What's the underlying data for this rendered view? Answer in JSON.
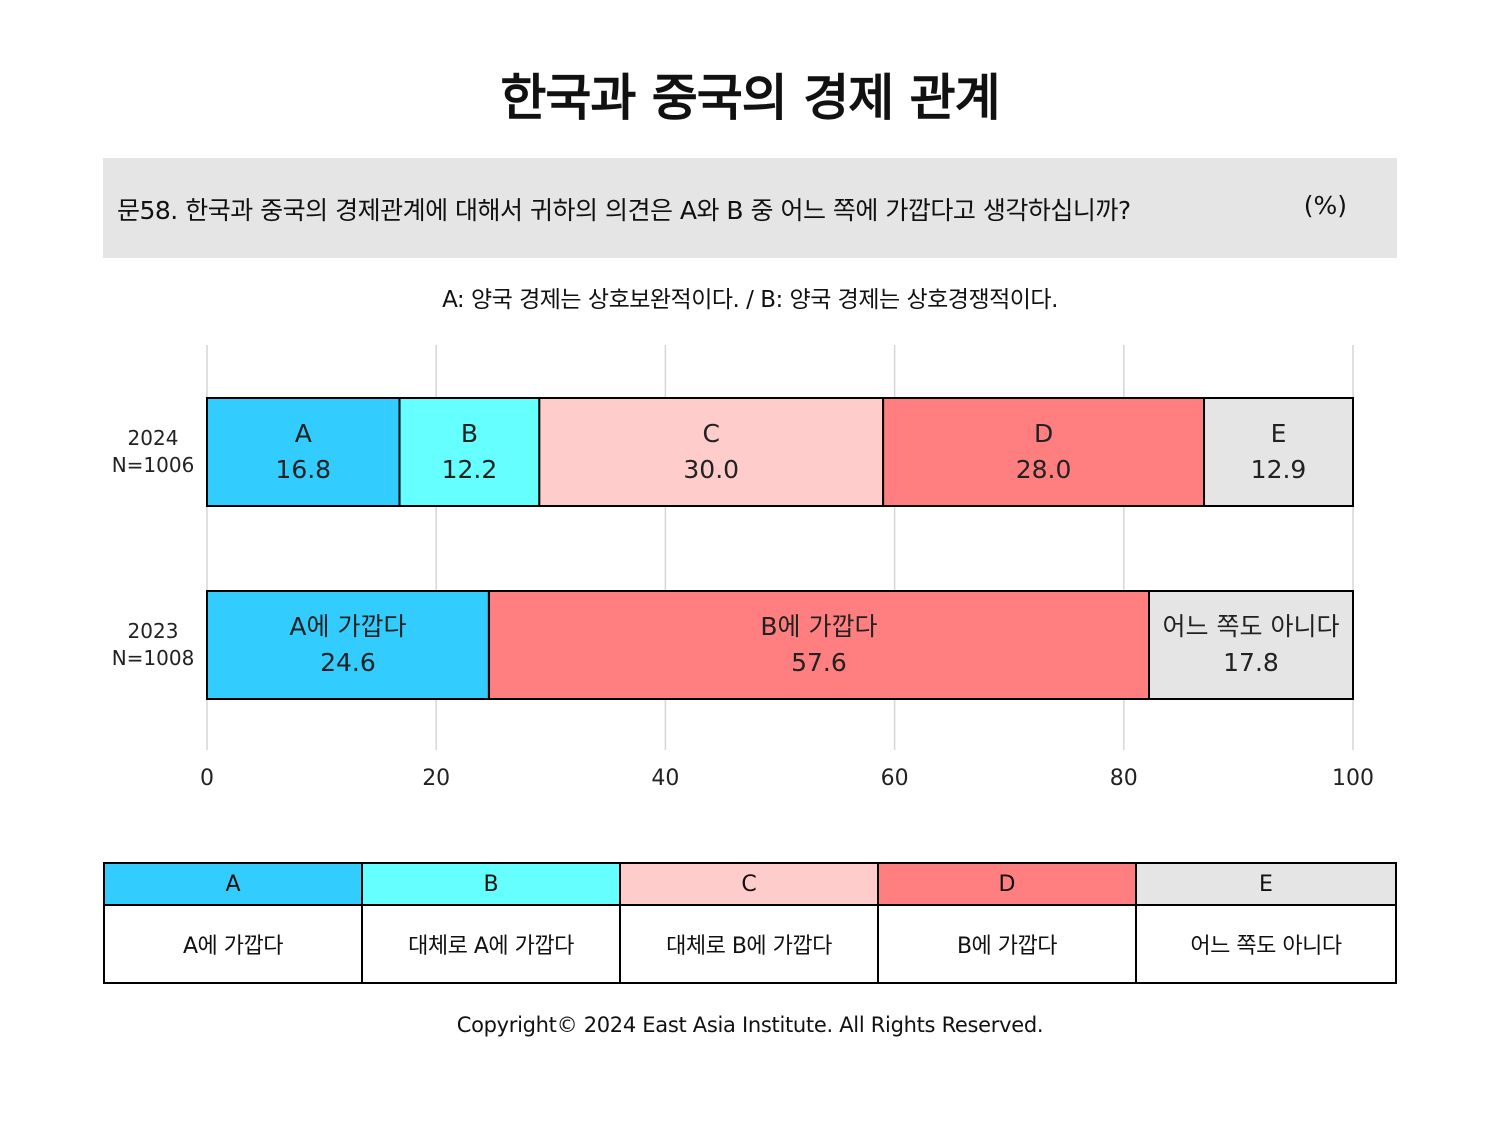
{
  "title": "한국과 중국의 경제 관계",
  "question": {
    "text": "문58. 한국과 중국의 경제관계에 대해서 귀하의 의견은 A와 B 중 어느 쪽에 가깝다고 생각하십니까?",
    "unit": "(%)"
  },
  "subtitle": "A: 양국 경제는 상호보완적이다. / B: 양국 경제는 상호경쟁적이다.",
  "colors": {
    "A": "#33ccff",
    "B": "#66ffff",
    "C": "#ffcccc",
    "D": "#ff7f80",
    "E": "#e6e5e6"
  },
  "chart_data": {
    "type": "bar",
    "orientation": "horizontal",
    "stacked": true,
    "xlim": [
      0,
      100
    ],
    "xticks": [
      "0",
      "20",
      "40",
      "60",
      "80",
      "100"
    ],
    "grid": true,
    "rows": [
      {
        "year": "2024",
        "n": "N=1006",
        "segments": [
          {
            "label": "A",
            "value": 16.8,
            "display": "16.8",
            "color": "#33ccff"
          },
          {
            "label": "B",
            "value": 12.2,
            "display": "12.2",
            "color": "#66ffff"
          },
          {
            "label": "C",
            "value": 30.0,
            "display": "30.0",
            "color": "#ffcccc"
          },
          {
            "label": "D",
            "value": 28.0,
            "display": "28.0",
            "color": "#ff7f80"
          },
          {
            "label": "E",
            "value": 12.9,
            "display": "12.9",
            "color": "#e6e5e6"
          }
        ]
      },
      {
        "year": "2023",
        "n": "N=1008",
        "segments": [
          {
            "label": "A에 가깝다",
            "value": 24.6,
            "display": "24.6",
            "color": "#33ccff"
          },
          {
            "label": "B에 가깝다",
            "value": 57.6,
            "display": "57.6",
            "color": "#ff7f80"
          },
          {
            "label": "어느 쪽도 아니다",
            "value": 17.8,
            "display": "17.8",
            "color": "#e6e5e6"
          }
        ]
      }
    ]
  },
  "legend": [
    {
      "key": "A",
      "desc": "A에 가깝다"
    },
    {
      "key": "B",
      "desc": "대체로 A에 가깝다"
    },
    {
      "key": "C",
      "desc": "대체로 B에 가깝다"
    },
    {
      "key": "D",
      "desc": "B에 가깝다"
    },
    {
      "key": "E",
      "desc": "어느 쪽도 아니다"
    }
  ],
  "copyright": "Copyright© 2024 East Asia Institute. All Rights Reserved."
}
